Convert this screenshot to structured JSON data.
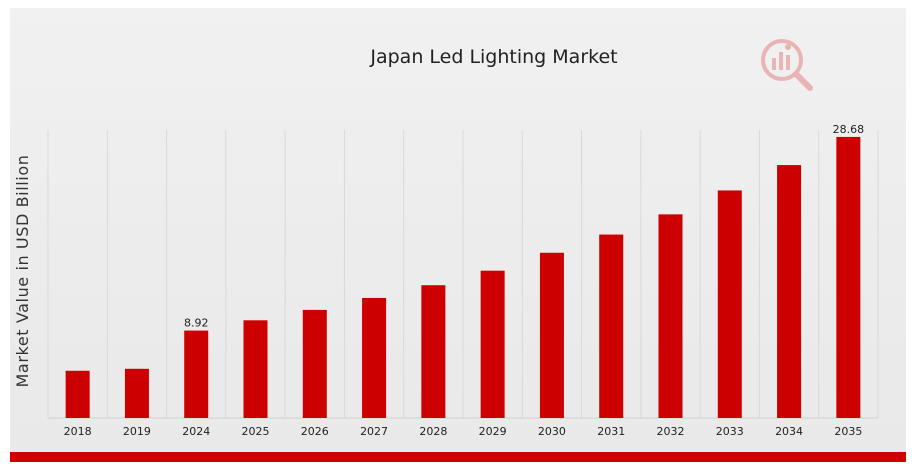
{
  "chart_data": {
    "type": "bar",
    "title": "Japan Led Lighting Market",
    "ylabel": "Market Value in USD Billion",
    "xlabel": "",
    "categories": [
      "2018",
      "2019",
      "2024",
      "2025",
      "2026",
      "2027",
      "2028",
      "2029",
      "2030",
      "2031",
      "2032",
      "2033",
      "2034",
      "2035"
    ],
    "values": [
      4.82,
      5.02,
      8.92,
      9.97,
      11.03,
      12.25,
      13.55,
      15.03,
      16.86,
      18.72,
      20.78,
      23.22,
      25.81,
      28.68
    ],
    "data_labels": [
      {
        "index": 2,
        "text": "8.92"
      },
      {
        "index": 13,
        "text": "28.68"
      }
    ],
    "ylim": [
      0,
      30
    ],
    "grid": "vertical",
    "legend": "none",
    "bar_color": "#cc0000",
    "grid_color": "#d9d9d9"
  },
  "brand": {
    "logo_icon": "mrfr-logo-icon",
    "accent": "#cc0000"
  }
}
